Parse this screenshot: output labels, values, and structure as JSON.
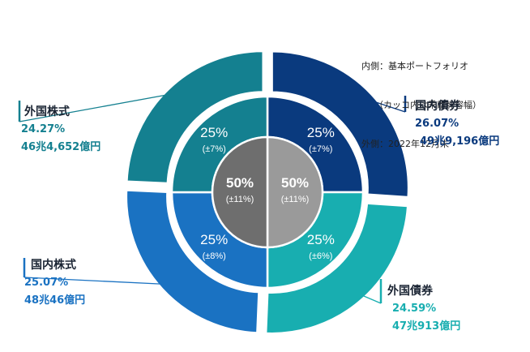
{
  "note": {
    "line1": "内側：基本ポートフォリオ",
    "line2": "（カッコ内は乖離許容幅）",
    "line3": "外側：2022年12月末"
  },
  "chart_data": [
    {
      "type": "pie",
      "ring": "outer",
      "start": "12 o'clock, clockwise",
      "categories": [
        "国内債券",
        "外国債券",
        "国内株式",
        "外国株式"
      ],
      "values": [
        26.07,
        24.59,
        25.07,
        24.27
      ],
      "labels_pct": [
        "26.07%",
        "24.59%",
        "25.07%",
        "24.27%"
      ],
      "labels_value": [
        "49兆9,196億円",
        "47兆913億円",
        "48兆46億円",
        "46兆4,652億円"
      ],
      "colors": [
        "#0a3a7e",
        "#18aeb0",
        "#1a72c2",
        "#148090"
      ]
    },
    {
      "type": "pie",
      "ring": "middle",
      "start": "12 o'clock, clockwise",
      "categories": [
        "国内債券",
        "外国債券",
        "国内株式",
        "外国株式"
      ],
      "values": [
        25,
        25,
        25,
        25
      ],
      "labels": [
        "25%",
        "25%",
        "25%",
        "25%"
      ],
      "bands": [
        "(±7%)",
        "(±6%)",
        "(±8%)",
        "(±7%)"
      ],
      "colors": [
        "#0a3a7e",
        "#18aeb0",
        "#1a72c2",
        "#148090"
      ]
    },
    {
      "type": "pie",
      "ring": "inner",
      "start": "12 o'clock, clockwise",
      "values": [
        50,
        50
      ],
      "labels": [
        "50%",
        "50%"
      ],
      "bands": [
        "(±11%)",
        "(±11%)"
      ],
      "colors": [
        "#9a9a9a",
        "#6e6e6e"
      ]
    }
  ],
  "colors": {
    "text_navy": "#0a3a7e",
    "text_teal": "#148090",
    "text_blue": "#1a72c2",
    "text_cyan": "#18aeb0"
  }
}
